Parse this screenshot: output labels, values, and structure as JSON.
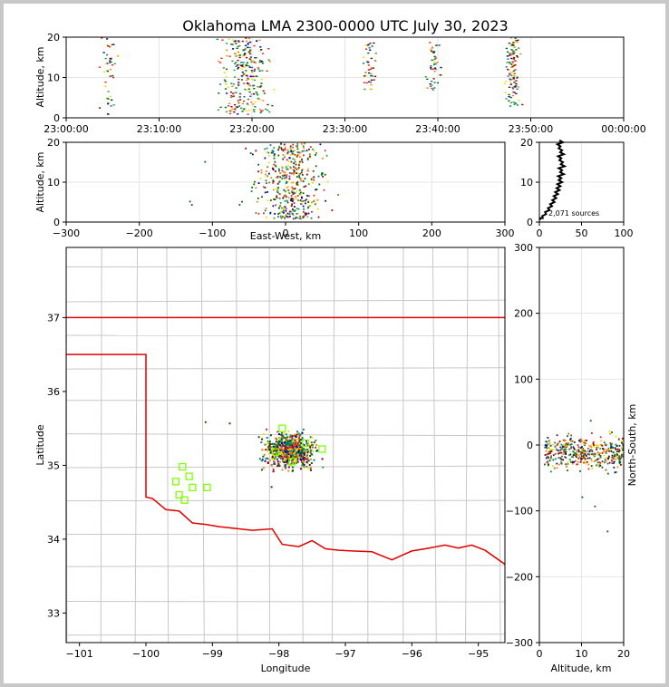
{
  "chart_data": [
    {
      "id": "time-height",
      "type": "scatter",
      "title": "Oklahoma LMA 2300-0000 UTC July 30, 2023",
      "ylabel": "Altitude, km",
      "xlabel": "",
      "x_tick_labels": [
        "23:00:00",
        "23:10:00",
        "23:20:00",
        "23:30:00",
        "23:40:00",
        "23:50:00",
        "00:00:00"
      ],
      "x_range_minutes": [
        0,
        60
      ],
      "ylim": [
        0,
        20
      ],
      "y_ticks": [
        0,
        10,
        20
      ],
      "grid": true,
      "source_clusters": [
        {
          "time_min": 4.5,
          "alt_range": [
            1,
            20
          ],
          "density": "low"
        },
        {
          "time_min": 19.0,
          "alt_range": [
            1,
            20
          ],
          "density": "high"
        },
        {
          "time_min": 32.5,
          "alt_range": [
            7,
            19
          ],
          "density": "low"
        },
        {
          "time_min": 39.5,
          "alt_range": [
            7,
            19
          ],
          "density": "low"
        },
        {
          "time_min": 48.0,
          "alt_range": [
            3,
            20
          ],
          "density": "medium"
        }
      ]
    },
    {
      "id": "ew-height",
      "type": "scatter",
      "xlabel": "East-West, km",
      "ylabel": "Altitude, km",
      "xlim": [
        -300,
        300
      ],
      "x_ticks": [
        -300,
        -200,
        -100,
        0,
        100,
        200,
        300
      ],
      "ylim": [
        0,
        20
      ],
      "y_ticks": [
        0,
        10,
        20
      ],
      "grid": true,
      "source_cluster": {
        "ew_km_center": 5,
        "ew_km_spread": 40,
        "alt_range": [
          1,
          20
        ]
      }
    },
    {
      "id": "altitude-histogram",
      "type": "line",
      "xlim": [
        0,
        100
      ],
      "x_ticks": [
        0,
        50,
        100
      ],
      "ylim": [
        0,
        20
      ],
      "y_ticks": [
        0,
        10,
        20
      ],
      "annotation": "2,071 sources",
      "profile": [
        [
          1,
          0.5
        ],
        [
          4,
          1
        ],
        [
          8,
          2
        ],
        [
          12,
          3
        ],
        [
          15,
          4
        ],
        [
          18,
          5
        ],
        [
          20,
          6
        ],
        [
          22,
          7
        ],
        [
          24,
          8
        ],
        [
          25,
          9
        ],
        [
          27,
          10
        ],
        [
          26,
          11
        ],
        [
          29,
          12
        ],
        [
          27,
          13
        ],
        [
          30,
          14
        ],
        [
          28,
          15
        ],
        [
          26,
          16
        ],
        [
          29,
          17
        ],
        [
          27,
          18
        ],
        [
          25,
          19
        ],
        [
          28,
          20
        ]
      ]
    },
    {
      "id": "plan-view",
      "type": "scatter",
      "xlabel": "Longitude",
      "ylabel": "Latitude",
      "xlim": [
        -101.2,
        -94.6
      ],
      "x_ticks": [
        -101,
        -100,
        -99,
        -98,
        -97,
        -96,
        -95
      ],
      "ylim": [
        32.6,
        37.95
      ],
      "y_ticks": [
        33,
        34,
        35,
        36,
        37
      ],
      "source_cluster": {
        "lon_center": -97.85,
        "lat_center": 35.22,
        "lon_spread": 0.3,
        "lat_spread": 0.2
      },
      "stations": [
        {
          "lon": -99.45,
          "lat": 34.98
        },
        {
          "lon": -99.35,
          "lat": 34.85
        },
        {
          "lon": -99.55,
          "lat": 34.78
        },
        {
          "lon": -99.3,
          "lat": 34.7
        },
        {
          "lon": -99.08,
          "lat": 34.7
        },
        {
          "lon": -99.5,
          "lat": 34.6
        },
        {
          "lon": -99.42,
          "lat": 34.53
        },
        {
          "lon": -97.95,
          "lat": 35.5
        },
        {
          "lon": -97.6,
          "lat": 35.3
        },
        {
          "lon": -97.35,
          "lat": 35.22
        },
        {
          "lon": -97.8,
          "lat": 35.05
        },
        {
          "lon": -98.05,
          "lat": 35.18
        }
      ]
    },
    {
      "id": "ns-altitude",
      "type": "scatter",
      "xlabel": "Altitude, km",
      "ylabel": "North-South, km",
      "xlim": [
        0,
        20
      ],
      "x_ticks": [
        0,
        10,
        20
      ],
      "ylim": [
        -300,
        300
      ],
      "y_ticks": [
        -300,
        -200,
        -100,
        0,
        100,
        200,
        300
      ],
      "grid": true,
      "source_cluster": {
        "ns_km_center": -10,
        "ns_km_spread": 25,
        "alt_range": [
          1,
          20
        ]
      }
    }
  ],
  "colors": {
    "state_border": "#e00000",
    "county_lines": "#c8c8c8",
    "station": "#7fff00",
    "source_colors": [
      "#8b0000",
      "#d62728",
      "#ff7f0e",
      "#ffd700",
      "#2ca02c",
      "#006400",
      "#008080",
      "#00008b"
    ],
    "histogram_line": "#000000"
  }
}
